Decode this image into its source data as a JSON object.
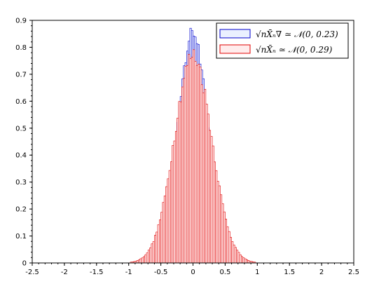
{
  "chart_data": {
    "type": "bar",
    "subtype": "histogram",
    "xlim": [
      -2.5,
      2.5
    ],
    "ylim": [
      0,
      0.9
    ],
    "x_ticks": [
      -2.5,
      -2,
      -1.5,
      -1,
      -0.5,
      0,
      0.5,
      1,
      1.5,
      2,
      2.5
    ],
    "x_tick_labels": [
      "-2.5",
      "-2",
      "-1.5",
      "-1",
      "-0.5",
      "0",
      "0.5",
      "1",
      "1.5",
      "2",
      "2.5"
    ],
    "y_ticks": [
      0,
      0.1,
      0.2,
      0.3,
      0.4,
      0.5,
      0.6,
      0.7,
      0.8,
      0.9
    ],
    "y_tick_labels": [
      "0",
      "0.1",
      "0.2",
      "0.3",
      "0.4",
      "0.5",
      "0.6",
      "0.7",
      "0.8",
      "0.9"
    ],
    "bin_width": 0.025,
    "legend_position": "top-right",
    "series": [
      {
        "label": "√nX̄ₙ^∇ ≃ 𝒩(0, 0.23)",
        "color": "#0000cc",
        "fill": "#eaf0ff",
        "normal": {
          "mean": 0,
          "sd": 0.23,
          "peak_density": 0.86
        }
      },
      {
        "label": "√nX̄ₙ ≃ 𝒩(0, 0.29)",
        "color": "#e00000",
        "fill": "#ffecec",
        "normal": {
          "mean": 0,
          "sd": 0.29,
          "peak_density": 0.77
        }
      }
    ]
  }
}
